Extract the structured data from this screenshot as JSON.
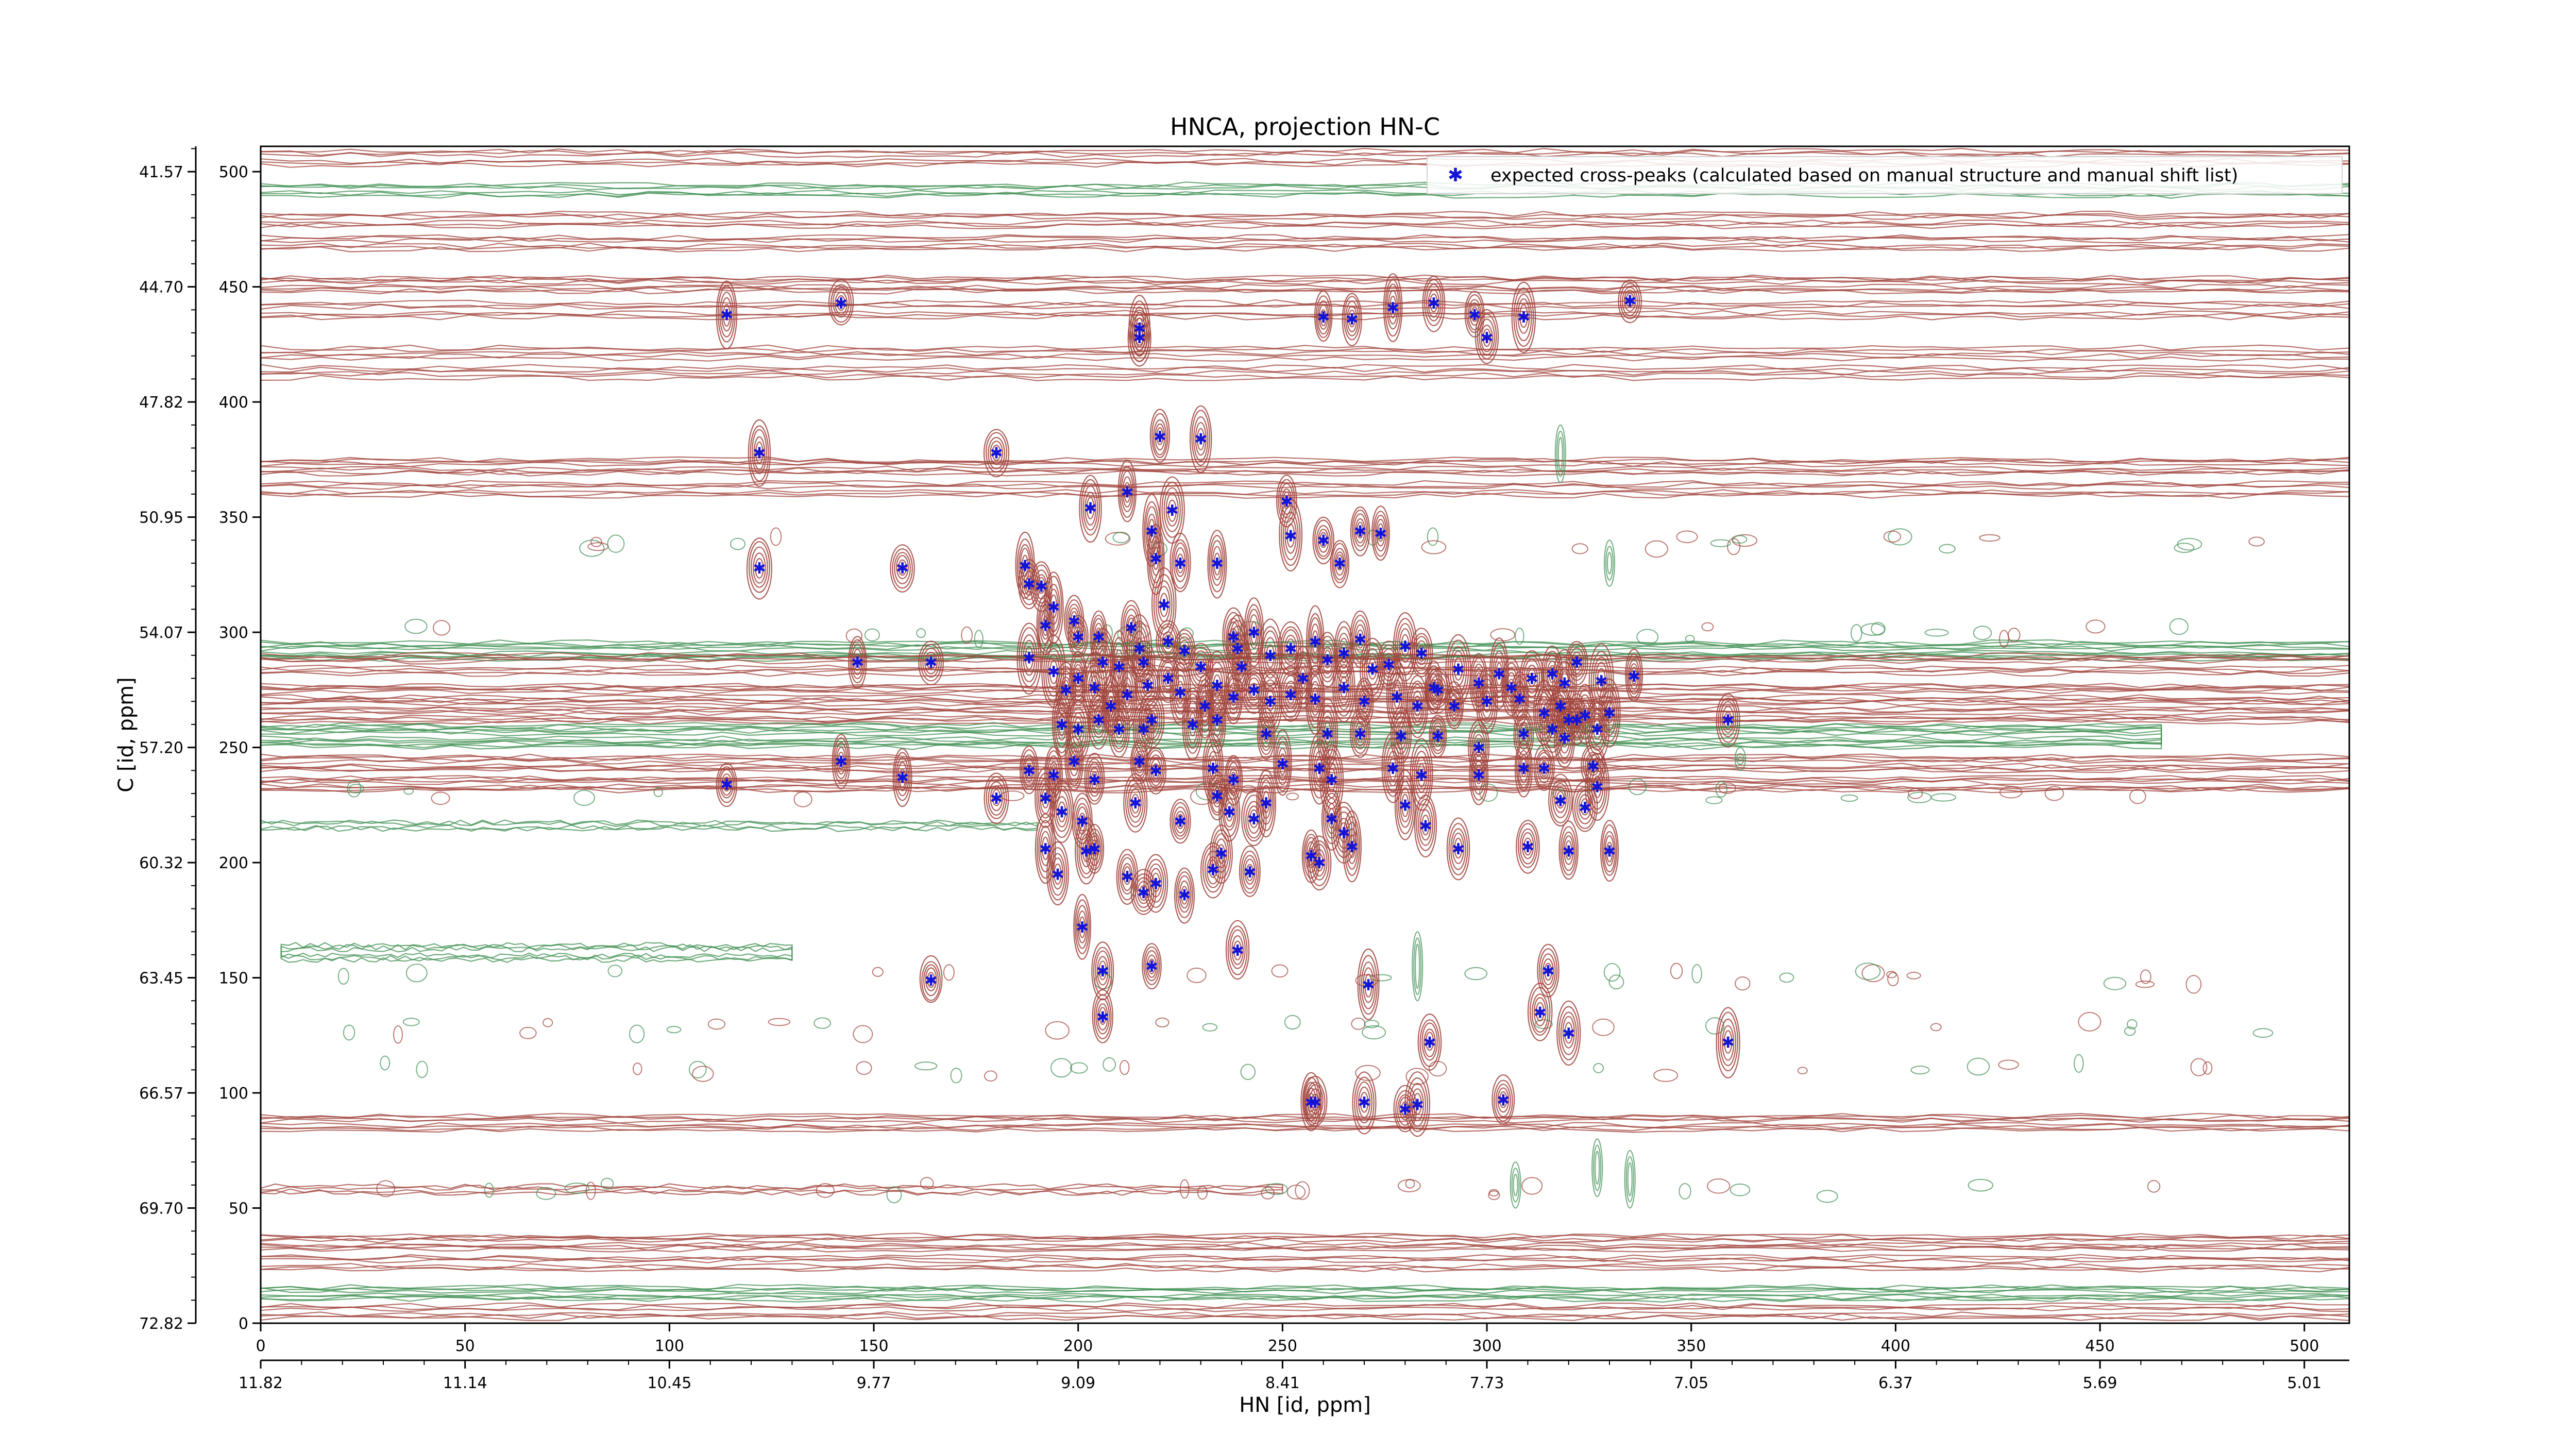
{
  "chart_data": {
    "type": "scatter",
    "title": "HNCA, projection HN-C",
    "xlabel": "HN [id, ppm]",
    "ylabel": "C [id, ppm]",
    "x_index_ticks": [
      "0",
      "50",
      "100",
      "150",
      "200",
      "250",
      "300",
      "350",
      "400",
      "450",
      "500"
    ],
    "x_ppm_ticks": [
      "11.82",
      "11.14",
      "10.45",
      "9.77",
      "9.09",
      "8.41",
      "7.73",
      "7.05",
      "6.37",
      "5.69",
      "5.01"
    ],
    "y_index_ticks": [
      "0",
      "50",
      "100",
      "150",
      "200",
      "250",
      "300",
      "350",
      "400",
      "450",
      "500"
    ],
    "y_ppm_ticks": [
      "72.82",
      "69.70",
      "66.57",
      "63.45",
      "60.32",
      "57.20",
      "54.07",
      "50.95",
      "47.82",
      "44.70",
      "41.57"
    ],
    "xlim": [
      0,
      511
    ],
    "ylim": [
      0,
      511
    ],
    "legend": {
      "placement": "top-right",
      "label": "expected cross-peaks (calculated based on manual structure and manual shift list)"
    },
    "colors": {
      "positive": "#a0433b",
      "negative": "#3f8f52",
      "marker": "#1414d8"
    },
    "series": [
      {
        "label": "expected cross-peaks (calculated based on manual structure and manual shift list)",
        "points": [
          [
            114,
            438
          ],
          [
            142,
            443
          ],
          [
            215,
            432
          ],
          [
            215,
            428
          ],
          [
            260,
            437
          ],
          [
            267,
            436
          ],
          [
            277,
            441
          ],
          [
            287,
            443
          ],
          [
            297,
            438
          ],
          [
            300,
            428
          ],
          [
            309,
            437
          ],
          [
            335,
            444
          ],
          [
            122,
            378
          ],
          [
            180,
            378
          ],
          [
            220,
            385
          ],
          [
            230,
            384
          ],
          [
            203,
            354
          ],
          [
            212,
            361
          ],
          [
            218,
            344
          ],
          [
            223,
            353
          ],
          [
            219,
            332
          ],
          [
            225,
            330
          ],
          [
            234,
            330
          ],
          [
            251,
            357
          ],
          [
            252,
            342
          ],
          [
            260,
            340
          ],
          [
            264,
            330
          ],
          [
            269,
            344
          ],
          [
            274,
            343
          ],
          [
            122,
            328
          ],
          [
            157,
            328
          ],
          [
            187,
            329
          ],
          [
            188,
            321
          ],
          [
            191,
            320
          ],
          [
            192,
            303
          ],
          [
            194,
            311
          ],
          [
            199,
            305
          ],
          [
            200,
            298
          ],
          [
            205,
            298
          ],
          [
            206,
            287
          ],
          [
            210,
            285
          ],
          [
            213,
            302
          ],
          [
            215,
            293
          ],
          [
            216,
            287
          ],
          [
            221,
            312
          ],
          [
            222,
            296
          ],
          [
            226,
            292
          ],
          [
            230,
            285
          ],
          [
            238,
            298
          ],
          [
            239,
            293
          ],
          [
            240,
            285
          ],
          [
            243,
            300
          ],
          [
            247,
            290
          ],
          [
            252,
            293
          ],
          [
            255,
            280
          ],
          [
            258,
            296
          ],
          [
            261,
            288
          ],
          [
            265,
            291
          ],
          [
            269,
            297
          ],
          [
            272,
            284
          ],
          [
            276,
            286
          ],
          [
            280,
            294
          ],
          [
            284,
            291
          ],
          [
            287,
            276
          ],
          [
            293,
            284
          ],
          [
            298,
            278
          ],
          [
            303,
            282
          ],
          [
            306,
            276
          ],
          [
            311,
            280
          ],
          [
            316,
            282
          ],
          [
            319,
            278
          ],
          [
            322,
            287
          ],
          [
            328,
            279
          ],
          [
            336,
            281
          ],
          [
            146,
            287
          ],
          [
            164,
            287
          ],
          [
            188,
            289
          ],
          [
            194,
            283
          ],
          [
            197,
            275
          ],
          [
            200,
            280
          ],
          [
            204,
            276
          ],
          [
            208,
            268
          ],
          [
            212,
            273
          ],
          [
            217,
            277
          ],
          [
            222,
            280
          ],
          [
            225,
            274
          ],
          [
            231,
            268
          ],
          [
            234,
            277
          ],
          [
            238,
            272
          ],
          [
            243,
            275
          ],
          [
            247,
            270
          ],
          [
            252,
            273
          ],
          [
            258,
            271
          ],
          [
            265,
            276
          ],
          [
            270,
            270
          ],
          [
            278,
            272
          ],
          [
            283,
            268
          ],
          [
            288,
            275
          ],
          [
            292,
            268
          ],
          [
            300,
            270
          ],
          [
            308,
            271
          ],
          [
            314,
            265
          ],
          [
            318,
            268
          ],
          [
            320,
            262
          ],
          [
            324,
            264
          ],
          [
            330,
            265
          ],
          [
            196,
            260
          ],
          [
            200,
            258
          ],
          [
            205,
            262
          ],
          [
            210,
            258
          ],
          [
            216,
            258
          ],
          [
            218,
            262
          ],
          [
            228,
            260
          ],
          [
            234,
            262
          ],
          [
            246,
            256
          ],
          [
            261,
            256
          ],
          [
            269,
            256
          ],
          [
            279,
            255
          ],
          [
            288,
            255
          ],
          [
            298,
            250
          ],
          [
            309,
            256
          ],
          [
            316,
            258
          ],
          [
            319,
            254
          ],
          [
            322,
            262
          ],
          [
            327,
            258
          ],
          [
            359,
            262
          ],
          [
            142,
            244
          ],
          [
            157,
            237
          ],
          [
            114,
            234
          ],
          [
            188,
            240
          ],
          [
            194,
            238
          ],
          [
            199,
            244
          ],
          [
            204,
            236
          ],
          [
            215,
            244
          ],
          [
            219,
            240
          ],
          [
            233,
            241
          ],
          [
            238,
            236
          ],
          [
            250,
            243
          ],
          [
            259,
            241
          ],
          [
            262,
            236
          ],
          [
            277,
            241
          ],
          [
            284,
            238
          ],
          [
            298,
            238
          ],
          [
            309,
            241
          ],
          [
            314,
            241
          ],
          [
            326,
            242
          ],
          [
            327,
            233
          ],
          [
            180,
            228
          ],
          [
            192,
            228
          ],
          [
            196,
            222
          ],
          [
            201,
            218
          ],
          [
            214,
            226
          ],
          [
            225,
            218
          ],
          [
            234,
            229
          ],
          [
            237,
            222
          ],
          [
            243,
            219
          ],
          [
            246,
            226
          ],
          [
            262,
            219
          ],
          [
            265,
            213
          ],
          [
            280,
            225
          ],
          [
            285,
            216
          ],
          [
            318,
            227
          ],
          [
            324,
            224
          ],
          [
            192,
            206
          ],
          [
            195,
            195
          ],
          [
            202,
            205
          ],
          [
            204,
            206
          ],
          [
            212,
            194
          ],
          [
            216,
            187
          ],
          [
            219,
            191
          ],
          [
            226,
            186
          ],
          [
            233,
            197
          ],
          [
            235,
            204
          ],
          [
            242,
            196
          ],
          [
            257,
            203
          ],
          [
            259,
            200
          ],
          [
            267,
            207
          ],
          [
            293,
            206
          ],
          [
            310,
            207
          ],
          [
            320,
            205
          ],
          [
            330,
            205
          ],
          [
            201,
            172
          ],
          [
            239,
            162
          ],
          [
            206,
            153
          ],
          [
            218,
            155
          ],
          [
            164,
            149
          ],
          [
            271,
            147
          ],
          [
            315,
            153
          ],
          [
            313,
            135
          ],
          [
            206,
            133
          ],
          [
            320,
            126
          ],
          [
            286,
            122
          ],
          [
            359,
            122
          ],
          [
            257,
            96
          ],
          [
            258,
            96
          ],
          [
            270,
            96
          ],
          [
            304,
            97
          ],
          [
            280,
            93
          ],
          [
            283,
            95
          ]
        ]
      }
    ]
  }
}
